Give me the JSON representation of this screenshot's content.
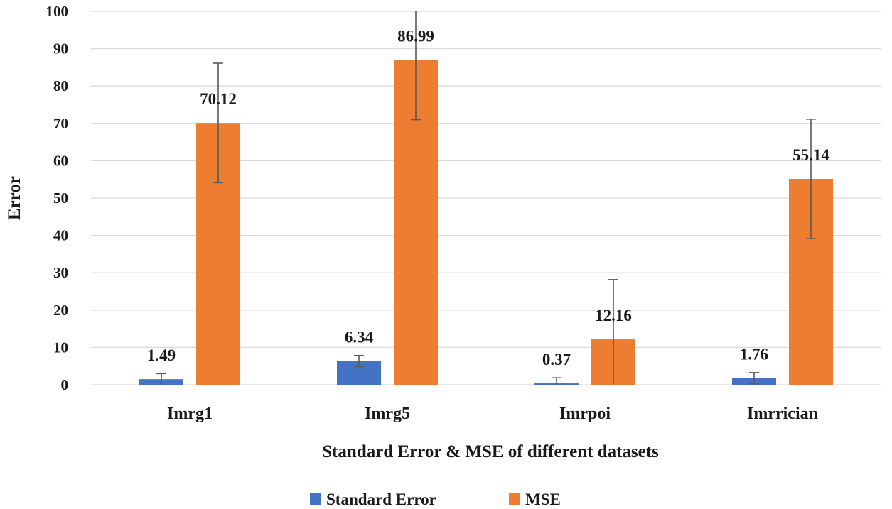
{
  "chart_data": {
    "type": "bar",
    "title": "",
    "xlabel": "Standard Error & MSE of different datasets",
    "ylabel": "Error",
    "ylim": [
      0,
      100
    ],
    "yticks": [
      0,
      10,
      20,
      30,
      40,
      50,
      60,
      70,
      80,
      90,
      100
    ],
    "grid": true,
    "legend_position": "bottom",
    "categories": [
      "Imrg1",
      "Imrg5",
      "Imrpoi",
      "Imrrician"
    ],
    "series": [
      {
        "name": "Standard Error",
        "color": "#4472C4",
        "values": [
          1.49,
          6.34,
          0.37,
          1.76
        ],
        "labels": [
          "1.49",
          "6.34",
          "0.37",
          "1.76"
        ],
        "error_plus": [
          1.49,
          1.49,
          1.49,
          1.49
        ],
        "error_minus": [
          1.49,
          1.49,
          1.49,
          1.49
        ]
      },
      {
        "name": "MSE",
        "color": "#ED7D31",
        "values": [
          70.12,
          86.99,
          12.16,
          55.14
        ],
        "labels": [
          "70.12",
          "86.99",
          "12.16",
          "55.14"
        ],
        "error_plus": [
          16,
          16,
          16,
          16
        ],
        "error_minus": [
          16,
          16,
          16,
          16
        ]
      }
    ]
  }
}
